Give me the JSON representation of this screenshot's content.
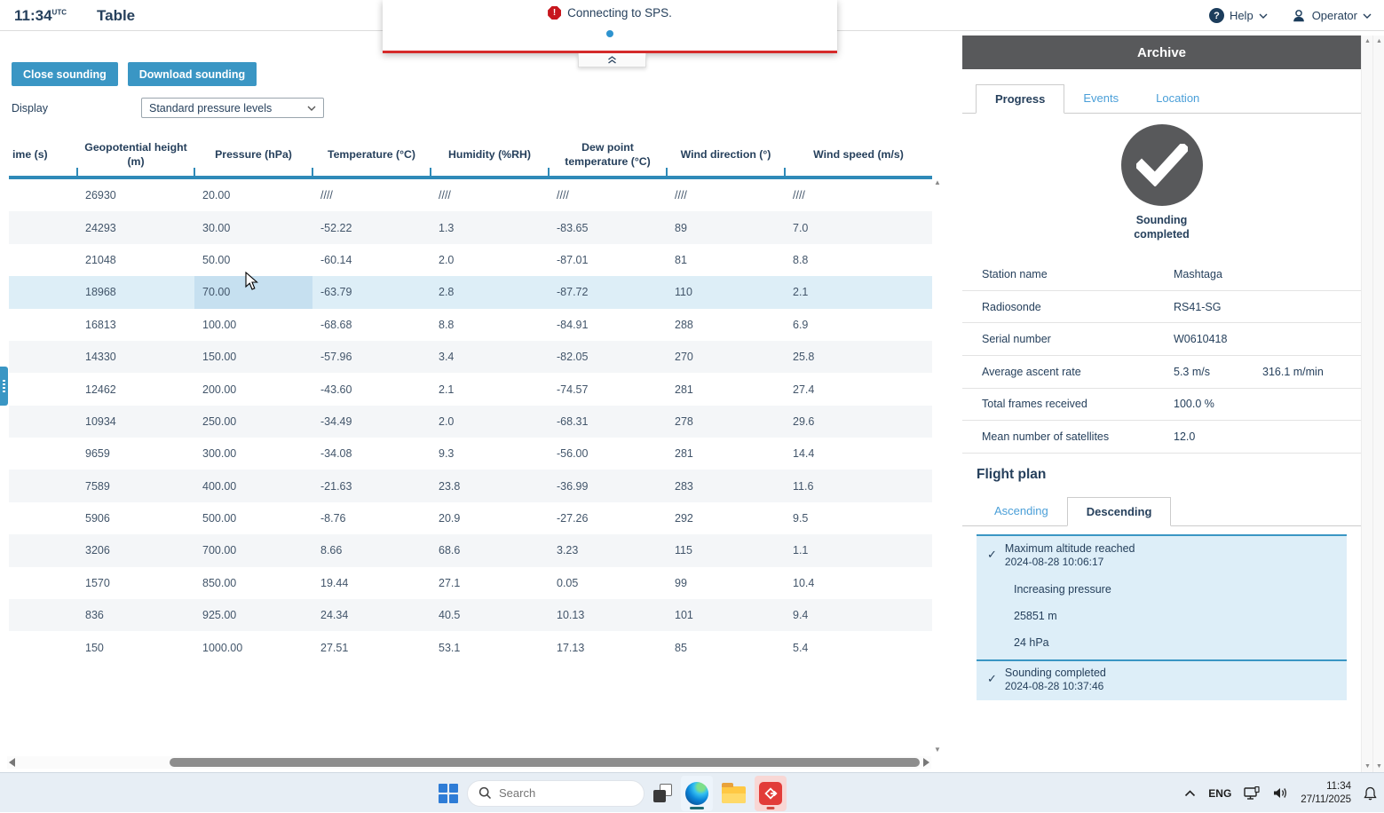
{
  "colors": {
    "accent": "#3a96c4",
    "link": "#4a9fd8",
    "danger": "#d62b2b",
    "panel_header": "#58595b",
    "row_alt": "#f4f6f8",
    "row_hover": "#ddeef7",
    "cell_hover": "#c6e0f0",
    "card_bg": "#ddeef8",
    "text": "#26405c"
  },
  "app_bar": {
    "time": "11:34",
    "time_suffix": "UTC",
    "title": "Table",
    "help_label": "Help",
    "operator_label": "Operator"
  },
  "notification": {
    "message": "Connecting to SPS."
  },
  "toolbar": {
    "close_button": "Close sounding",
    "download_button": "Download sounding",
    "display_label": "Display",
    "display_value": "Standard pressure levels"
  },
  "table": {
    "columns": [
      "ime (s)",
      "Geopotential height (m)",
      "Pressure (hPa)",
      "Temperature (°C)",
      "Humidity (%RH)",
      "Dew point temperature (°C)",
      "Wind direction (°)",
      "Wind speed (m/s)"
    ],
    "rows": [
      [
        "",
        "26930",
        "20.00",
        "////",
        "////",
        "////",
        "////",
        "////"
      ],
      [
        "",
        "24293",
        "30.00",
        "-52.22",
        "1.3",
        "-83.65",
        "89",
        "7.0"
      ],
      [
        "",
        "21048",
        "50.00",
        "-60.14",
        "2.0",
        "-87.01",
        "81",
        "8.8"
      ],
      [
        "",
        "18968",
        "70.00",
        "-63.79",
        "2.8",
        "-87.72",
        "110",
        "2.1"
      ],
      [
        "",
        "16813",
        "100.00",
        "-68.68",
        "8.8",
        "-84.91",
        "288",
        "6.9"
      ],
      [
        "",
        "14330",
        "150.00",
        "-57.96",
        "3.4",
        "-82.05",
        "270",
        "25.8"
      ],
      [
        "",
        "12462",
        "200.00",
        "-43.60",
        "2.1",
        "-74.57",
        "281",
        "27.4"
      ],
      [
        "",
        "10934",
        "250.00",
        "-34.49",
        "2.0",
        "-68.31",
        "278",
        "29.6"
      ],
      [
        "",
        "9659",
        "300.00",
        "-34.08",
        "9.3",
        "-56.00",
        "281",
        "14.4"
      ],
      [
        "",
        "7589",
        "400.00",
        "-21.63",
        "23.8",
        "-36.99",
        "283",
        "11.6"
      ],
      [
        "",
        "5906",
        "500.00",
        "-8.76",
        "20.9",
        "-27.26",
        "292",
        "9.5"
      ],
      [
        "",
        "3206",
        "700.00",
        "8.66",
        "68.6",
        "3.23",
        "115",
        "1.1"
      ],
      [
        "",
        "1570",
        "850.00",
        "19.44",
        "27.1",
        "0.05",
        "99",
        "10.4"
      ],
      [
        "",
        "836",
        "925.00",
        "24.34",
        "40.5",
        "10.13",
        "101",
        "9.4"
      ],
      [
        "",
        "150",
        "1000.00",
        "27.51",
        "53.1",
        "17.13",
        "85",
        "5.4"
      ]
    ],
    "highlight": {
      "row": 3,
      "col": 2
    }
  },
  "archive": {
    "title": "Archive",
    "tabs": [
      "Progress",
      "Events",
      "Location"
    ],
    "active_tab": "Progress",
    "status": "Sounding completed",
    "details": [
      {
        "label": "Station name",
        "value": "Mashtaga",
        "value2": ""
      },
      {
        "label": "Radiosonde",
        "value": "RS41-SG",
        "value2": ""
      },
      {
        "label": "Serial number",
        "value": "W0610418",
        "value2": ""
      },
      {
        "label": "Average ascent rate",
        "value": "5.3 m/s",
        "value2": "316.1 m/min"
      },
      {
        "label": "Total frames received",
        "value": "100.0 %",
        "value2": ""
      },
      {
        "label": "Mean number of satellites",
        "value": "12.0",
        "value2": ""
      }
    ],
    "flight_plan": {
      "heading": "Flight plan",
      "tabs": [
        "Ascending",
        "Descending"
      ],
      "active_tab": "Descending",
      "events": [
        {
          "title": "Maximum altitude reached",
          "timestamp": "2024-08-28 10:06:17",
          "details": [
            "Increasing pressure",
            "25851 m",
            "24 hPa"
          ]
        },
        {
          "title": "Sounding completed",
          "timestamp": "2024-08-28 10:37:46",
          "details": []
        }
      ]
    }
  },
  "taskbar": {
    "search_placeholder": "Search",
    "language": "ENG",
    "time": "11:34",
    "date": "27/11/2025"
  }
}
